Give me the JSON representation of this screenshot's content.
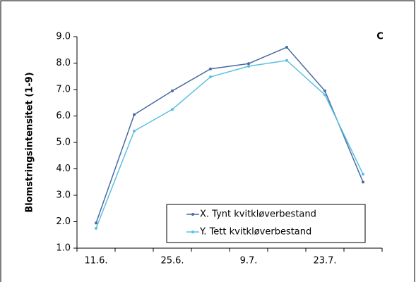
{
  "chart_data": {
    "type": "line",
    "title": "C",
    "y_label": "Blomstringsintensitet (1-9)",
    "categories": [
      "11.6.",
      null,
      "25.6.",
      null,
      "9.7.",
      null,
      "23.7.",
      null
    ],
    "series": [
      {
        "name": "X. Tynt kvitkløverbestand",
        "color": "#4a6aa0",
        "values": [
          1.95,
          6.05,
          6.95,
          7.78,
          7.98,
          8.6,
          6.95,
          3.5
        ]
      },
      {
        "name": "Y. Tett kvitkløverbestand",
        "color": "#5bc0e0",
        "values": [
          1.75,
          5.43,
          6.25,
          7.48,
          7.88,
          8.1,
          6.8,
          3.8
        ]
      }
    ],
    "ylim": [
      1,
      9
    ],
    "yticks": [
      {
        "value": 1,
        "label": "1.0"
      },
      {
        "value": 2,
        "label": "2.0"
      },
      {
        "value": 3,
        "label": "3.0"
      },
      {
        "value": 4,
        "label": "4.0"
      },
      {
        "value": 5,
        "label": "5.0"
      },
      {
        "value": 6,
        "label": "6.0"
      },
      {
        "value": 7,
        "label": "7.0"
      },
      {
        "value": 8,
        "label": "8.0"
      },
      {
        "value": 9,
        "label": "9.0"
      }
    ],
    "legend": "lower-right"
  }
}
